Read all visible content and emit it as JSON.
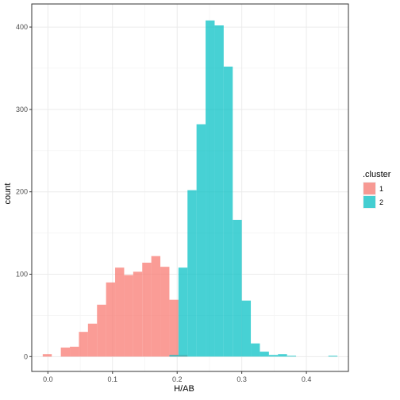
{
  "chart_data": {
    "type": "bar",
    "subtype": "histogram",
    "xlabel": "H/AB",
    "ylabel": "count",
    "xlim": [
      -0.025,
      0.465
    ],
    "ylim": [
      -18,
      428
    ],
    "x_ticks": [
      {
        "value": 0.0,
        "label": "0.0"
      },
      {
        "value": 0.1,
        "label": "0.1"
      },
      {
        "value": 0.2,
        "label": "0.2"
      },
      {
        "value": 0.3,
        "label": "0.3"
      },
      {
        "value": 0.4,
        "label": "0.4"
      }
    ],
    "y_ticks": [
      {
        "value": 0,
        "label": "0"
      },
      {
        "value": 100,
        "label": "100"
      },
      {
        "value": 200,
        "label": "200"
      },
      {
        "value": 300,
        "label": "300"
      },
      {
        "value": 400,
        "label": "400"
      }
    ],
    "grid": true,
    "legend": {
      "title": ".cluster",
      "placement": "right"
    },
    "series": [
      {
        "name": "1",
        "color": "#F8766D",
        "bins": [
          {
            "x0": -0.008,
            "x1": 0.006,
            "count": 3
          },
          {
            "x0": 0.02,
            "x1": 0.034,
            "count": 11
          },
          {
            "x0": 0.034,
            "x1": 0.048,
            "count": 12
          },
          {
            "x0": 0.048,
            "x1": 0.062,
            "count": 30
          },
          {
            "x0": 0.062,
            "x1": 0.076,
            "count": 40
          },
          {
            "x0": 0.076,
            "x1": 0.09,
            "count": 63
          },
          {
            "x0": 0.09,
            "x1": 0.104,
            "count": 90
          },
          {
            "x0": 0.104,
            "x1": 0.118,
            "count": 108
          },
          {
            "x0": 0.118,
            "x1": 0.132,
            "count": 99
          },
          {
            "x0": 0.132,
            "x1": 0.146,
            "count": 103
          },
          {
            "x0": 0.146,
            "x1": 0.16,
            "count": 114
          },
          {
            "x0": 0.16,
            "x1": 0.174,
            "count": 122
          },
          {
            "x0": 0.174,
            "x1": 0.188,
            "count": 109
          },
          {
            "x0": 0.188,
            "x1": 0.202,
            "count": 69
          },
          {
            "x0": 0.202,
            "x1": 0.216,
            "count": 2
          }
        ]
      },
      {
        "name": "2",
        "color": "#00BFC4",
        "bins": [
          {
            "x0": 0.188,
            "x1": 0.202,
            "count": 2
          },
          {
            "x0": 0.202,
            "x1": 0.216,
            "count": 108
          },
          {
            "x0": 0.216,
            "x1": 0.23,
            "count": 202
          },
          {
            "x0": 0.23,
            "x1": 0.244,
            "count": 282
          },
          {
            "x0": 0.244,
            "x1": 0.258,
            "count": 408
          },
          {
            "x0": 0.258,
            "x1": 0.272,
            "count": 402
          },
          {
            "x0": 0.272,
            "x1": 0.286,
            "count": 352
          },
          {
            "x0": 0.286,
            "x1": 0.3,
            "count": 166
          },
          {
            "x0": 0.3,
            "x1": 0.314,
            "count": 68
          },
          {
            "x0": 0.314,
            "x1": 0.328,
            "count": 16
          },
          {
            "x0": 0.328,
            "x1": 0.342,
            "count": 6
          },
          {
            "x0": 0.342,
            "x1": 0.356,
            "count": 2
          },
          {
            "x0": 0.356,
            "x1": 0.37,
            "count": 3
          },
          {
            "x0": 0.37,
            "x1": 0.384,
            "count": 1
          },
          {
            "x0": 0.434,
            "x1": 0.448,
            "count": 1
          }
        ]
      }
    ]
  }
}
